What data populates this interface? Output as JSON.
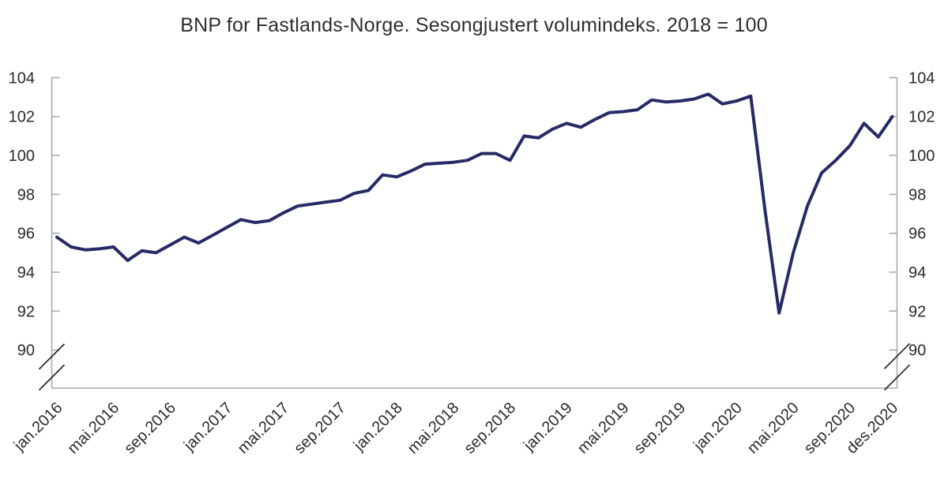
{
  "chart_data": {
    "type": "line",
    "title": "BNP for Fastlands-Norge. Sesongjustert volumindeks. 2018 = 100",
    "grid": false,
    "legend_position": "none",
    "axis_break": true,
    "y_ticks": [
      90,
      92,
      94,
      96,
      98,
      100,
      102,
      104
    ],
    "ylim_display": [
      90,
      104
    ],
    "x_tick_labels": [
      "jan.2016",
      "mai.2016",
      "sep.2016",
      "jan.2017",
      "mai.2017",
      "sep.2017",
      "jan.2018",
      "mai.2018",
      "sep.2018",
      "jan.2019",
      "mai.2019",
      "sep.2019",
      "jan.2020",
      "mai.2020",
      "sep.2020",
      "des.2020"
    ],
    "x_tick_month_indices": [
      0,
      4,
      8,
      12,
      16,
      20,
      24,
      28,
      32,
      36,
      40,
      44,
      48,
      52,
      56,
      59
    ],
    "x": [
      "jan.2016",
      "feb.2016",
      "mar.2016",
      "apr.2016",
      "mai.2016",
      "jun.2016",
      "jul.2016",
      "aug.2016",
      "sep.2016",
      "okt.2016",
      "nov.2016",
      "des.2016",
      "jan.2017",
      "feb.2017",
      "mar.2017",
      "apr.2017",
      "mai.2017",
      "jun.2017",
      "jul.2017",
      "aug.2017",
      "sep.2017",
      "okt.2017",
      "nov.2017",
      "des.2017",
      "jan.2018",
      "feb.2018",
      "mar.2018",
      "apr.2018",
      "mai.2018",
      "jun.2018",
      "jul.2018",
      "aug.2018",
      "sep.2018",
      "okt.2018",
      "nov.2018",
      "des.2018",
      "jan.2019",
      "feb.2019",
      "mar.2019",
      "apr.2019",
      "mai.2019",
      "jun.2019",
      "jul.2019",
      "aug.2019",
      "sep.2019",
      "okt.2019",
      "nov.2019",
      "des.2019",
      "jan.2020",
      "feb.2020",
      "mar.2020",
      "apr.2020",
      "mai.2020",
      "jun.2020",
      "jul.2020",
      "aug.2020",
      "sep.2020",
      "okt.2020",
      "nov.2020",
      "des.2020"
    ],
    "values": [
      95.8,
      95.3,
      95.15,
      95.2,
      95.3,
      94.6,
      95.1,
      95.0,
      95.4,
      95.8,
      95.5,
      95.9,
      96.3,
      96.7,
      96.55,
      96.65,
      97.05,
      97.4,
      97.5,
      97.6,
      97.7,
      98.05,
      98.2,
      99.0,
      98.9,
      99.2,
      99.55,
      99.6,
      99.65,
      99.75,
      100.1,
      100.1,
      99.75,
      101.0,
      100.9,
      101.35,
      101.65,
      101.45,
      101.85,
      102.2,
      102.25,
      102.35,
      102.85,
      102.75,
      102.8,
      102.9,
      103.15,
      102.65,
      102.8,
      103.05,
      97.2,
      91.9,
      95.0,
      97.4,
      99.1,
      99.75,
      100.5,
      101.65,
      100.95,
      102.0
    ],
    "colors": {
      "line": "#262b66",
      "axis": "#a9a9a9",
      "text": "#2b2b2b",
      "break_mark": "#222222"
    }
  }
}
